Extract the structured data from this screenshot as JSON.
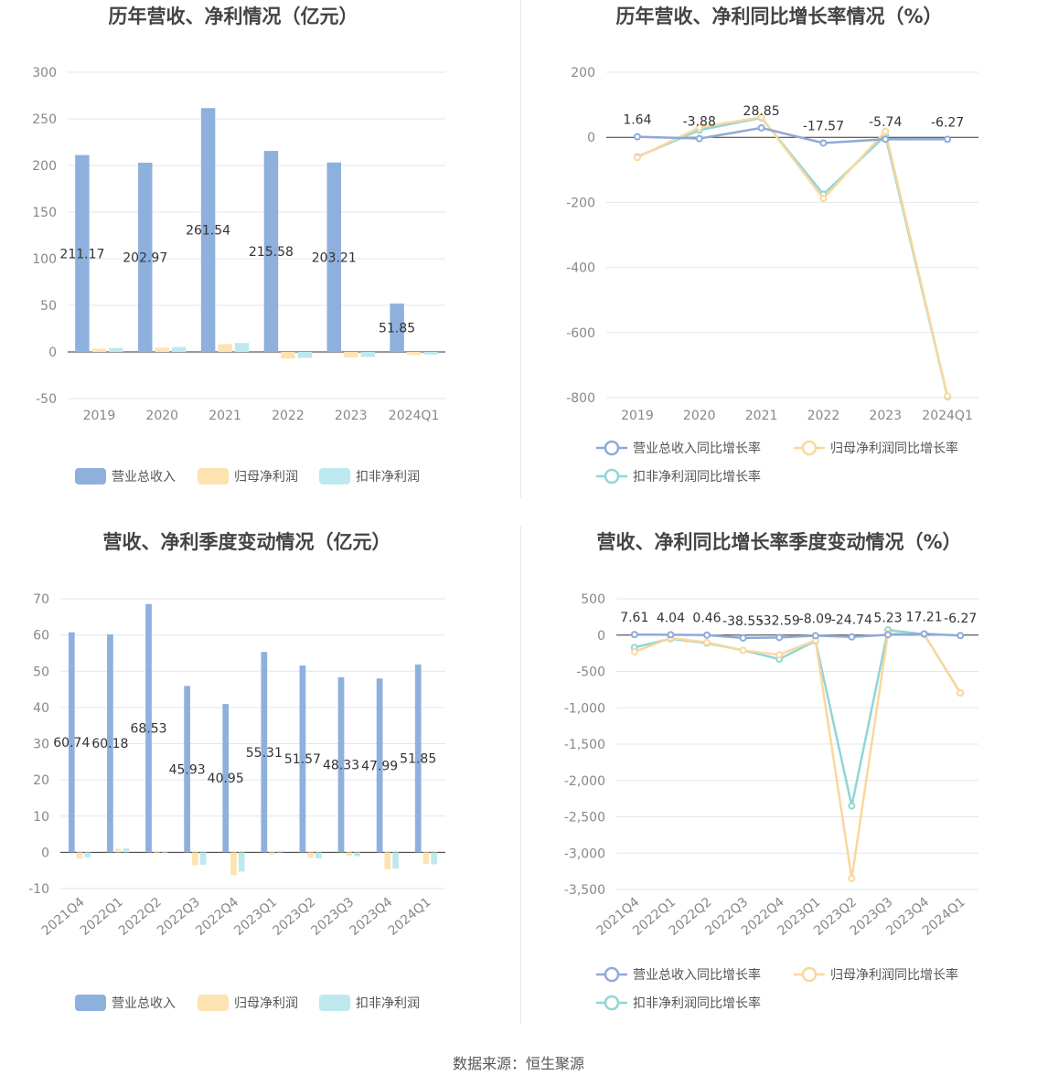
{
  "colors": {
    "revenue": "#8eb0dd",
    "net_profit": "#fde3b2",
    "deducted_profit": "#bde9ee",
    "revenue_line": "#8eaad8",
    "net_profit_line": "#fbd79c",
    "deducted_profit_line": "#8fd6d6",
    "grid": "#e0e6f1",
    "axis": "#333333"
  },
  "source_text": "数据来源：恒生聚源",
  "chart_data": [
    {
      "id": "annual_amounts",
      "type": "bar",
      "title": "历年营收、净利情况（亿元）",
      "categories": [
        "2019",
        "2020",
        "2021",
        "2022",
        "2023",
        "2024Q1"
      ],
      "series": [
        {
          "name": "营业总收入",
          "values": [
            211.17,
            202.97,
            261.54,
            215.58,
            203.21,
            51.85
          ],
          "labels": [
            "211.17",
            "202.97",
            "261.54",
            "215.58",
            "203.21",
            "51.85"
          ]
        },
        {
          "name": "归母净利润",
          "values": [
            3.5,
            4.6,
            8.5,
            -7.2,
            -5.8,
            -3.1
          ]
        },
        {
          "name": "扣非净利润",
          "values": [
            4.3,
            5.3,
            9.6,
            -6.4,
            -5.5,
            -2.8
          ]
        }
      ],
      "ylim": [
        -50,
        300
      ],
      "yticks": [
        "300",
        "250",
        "200",
        "150",
        "100",
        "50",
        "0",
        "-50"
      ],
      "ytick_values": [
        300,
        250,
        200,
        150,
        100,
        50,
        0,
        -50
      ],
      "legend_position": "bottom",
      "grid": true
    },
    {
      "id": "annual_growth",
      "type": "line",
      "title": "历年营收、净利同比增长率情况（%）",
      "categories": [
        "2019",
        "2020",
        "2021",
        "2022",
        "2023",
        "2024Q1"
      ],
      "series": [
        {
          "name": "营业总收入同比增长率",
          "values": [
            1.64,
            -3.88,
            28.85,
            -17.57,
            -5.74,
            -6.27
          ],
          "labels": [
            "1.64",
            "-3.88",
            "28.85",
            "-17.57",
            "-5.74",
            "-6.27"
          ]
        },
        {
          "name": "归母净利润同比增长率",
          "values": [
            -62,
            30,
            62,
            -188,
            18,
            -795
          ]
        },
        {
          "name": "扣非净利润同比增长率",
          "values": [
            -60,
            22,
            60,
            -175,
            5,
            -797
          ]
        }
      ],
      "ylim": [
        -800,
        200
      ],
      "yticks": [
        "200",
        "0",
        "-200",
        "-400",
        "-600",
        "-800"
      ],
      "ytick_values": [
        200,
        0,
        -200,
        -400,
        -600,
        -800
      ],
      "legend_position": "bottom",
      "grid": true
    },
    {
      "id": "quarterly_amounts",
      "type": "bar",
      "title": "营收、净利季度变动情况（亿元）",
      "categories": [
        "2021Q4",
        "2022Q1",
        "2022Q2",
        "2022Q3",
        "2022Q4",
        "2023Q1",
        "2023Q2",
        "2023Q3",
        "2023Q4",
        "2024Q1"
      ],
      "series": [
        {
          "name": "营业总收入",
          "values": [
            60.74,
            60.18,
            68.53,
            45.93,
            40.95,
            55.31,
            51.57,
            48.33,
            47.99,
            51.85
          ],
          "labels": [
            "60.74",
            "60.18",
            "68.53",
            "45.93",
            "40.95",
            "55.31",
            "51.57",
            "48.33",
            "47.99",
            "51.85"
          ]
        },
        {
          "name": "归母净利润",
          "values": [
            -1.7,
            1.0,
            0.1,
            -3.5,
            -6.3,
            -0.6,
            -1.5,
            -1.0,
            -4.7,
            -3.2
          ]
        },
        {
          "name": "扣非净利润",
          "values": [
            -1.4,
            1.1,
            0.1,
            -3.4,
            -5.3,
            0.4,
            -1.7,
            -1.1,
            -4.5,
            -3.3
          ]
        }
      ],
      "ylim": [
        -10,
        70
      ],
      "yticks": [
        "70",
        "60",
        "50",
        "40",
        "30",
        "20",
        "10",
        "0",
        "-10"
      ],
      "ytick_values": [
        70,
        60,
        50,
        40,
        30,
        20,
        10,
        0,
        -10
      ],
      "legend_position": "bottom",
      "grid": true
    },
    {
      "id": "quarterly_growth",
      "type": "line",
      "title": "营收、净利同比增长率季度变动情况（%）",
      "categories": [
        "2021Q4",
        "2022Q1",
        "2022Q2",
        "2022Q3",
        "2022Q4",
        "2023Q1",
        "2023Q2",
        "2023Q3",
        "2023Q4",
        "2024Q1"
      ],
      "series": [
        {
          "name": "营业总收入同比增长率",
          "values": [
            7.61,
            4.04,
            0.46,
            -38.55,
            -32.59,
            -8.09,
            -24.74,
            5.23,
            17.21,
            -6.27
          ],
          "labels": [
            "7.61",
            "4.04",
            "0.46",
            "-38.55",
            "-32.59",
            "-8.09",
            "-24.74",
            "5.23",
            "17.21",
            "-6.27"
          ]
        },
        {
          "name": "归母净利润同比增长率",
          "values": [
            -230,
            -40,
            -100,
            -210,
            -270,
            -70,
            -3350,
            20,
            10,
            -795
          ]
        },
        {
          "name": "扣非净利润同比增长率",
          "values": [
            -170,
            -50,
            -110,
            -210,
            -330,
            -80,
            -2350,
            70,
            10,
            -795
          ]
        }
      ],
      "ylim": [
        -3500,
        500
      ],
      "yticks": [
        "500",
        "0",
        "-500",
        "-1,000",
        "-1,500",
        "-2,000",
        "-2,500",
        "-3,000",
        "-3,500"
      ],
      "ytick_values": [
        500,
        0,
        -500,
        -1000,
        -1500,
        -2000,
        -2500,
        -3000,
        -3500
      ],
      "legend_position": "bottom",
      "grid": true
    }
  ]
}
